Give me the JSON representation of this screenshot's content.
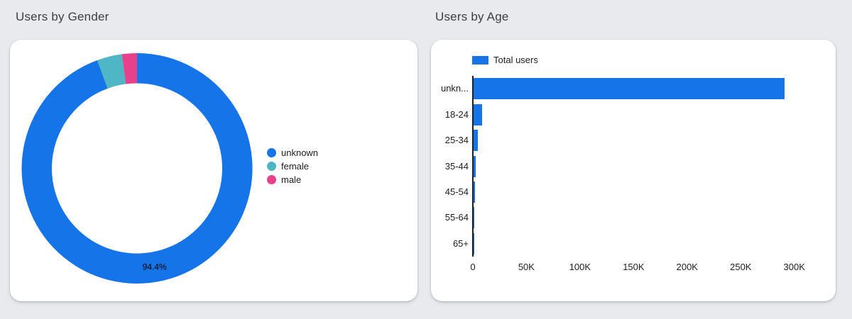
{
  "page": {
    "background": "#E8EAED",
    "card_background": "#FFFFFF",
    "title_color": "#3C4043",
    "text_color": "#202124"
  },
  "gender_chart": {
    "title": "Users by Gender"
  },
  "age_chart": {
    "title": "Users by Age",
    "legend_label": "Total users"
  },
  "chart_data": [
    {
      "type": "pie",
      "subtype": "donut",
      "title": "Users by Gender",
      "labels": [
        "unknown",
        "female",
        "male"
      ],
      "values_percent": [
        94.4,
        3.5,
        2.1
      ],
      "colors": [
        "#1574E8",
        "#4EB6C5",
        "#E8418C"
      ],
      "data_label": "94.4%",
      "data_label_slice": "unknown",
      "legend_position": "right",
      "start_angle_deg": 0,
      "direction": "clockwise"
    },
    {
      "type": "bar",
      "orientation": "horizontal",
      "title": "Users by Age",
      "categories": [
        "unknown",
        "18-24",
        "25-34",
        "35-44",
        "45-54",
        "55-64",
        "65+"
      ],
      "display_categories": [
        "unkn...",
        "18-24",
        "25-34",
        "35-44",
        "45-54",
        "55-64",
        "65+"
      ],
      "series": [
        {
          "name": "Total users",
          "values": [
            290000,
            8000,
            4000,
            2200,
            1500,
            500,
            300
          ]
        }
      ],
      "bar_color": "#1574E8",
      "xlim": [
        0,
        300000
      ],
      "xticks_values": [
        0,
        50000,
        100000,
        150000,
        200000,
        250000,
        300000
      ],
      "xticks_labels": [
        "0",
        "50K",
        "100K",
        "150K",
        "200K",
        "250K",
        "300K"
      ],
      "grid": false,
      "legend_position": "top"
    }
  ]
}
